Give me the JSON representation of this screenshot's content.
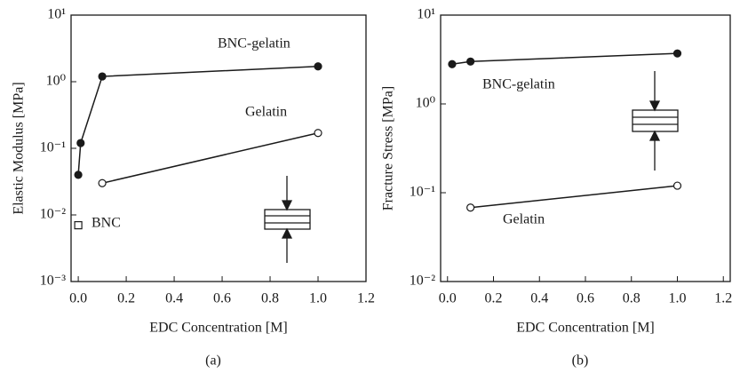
{
  "chart_data": [
    {
      "type": "line",
      "caption": "(a)",
      "xlabel": "EDC Concentration [M]",
      "ylabel": "Elastic Modulus [MPa]",
      "log_y": true,
      "xlim": [
        -0.03,
        1.2
      ],
      "ylim": [
        0.001,
        10
      ],
      "xticks": [
        {
          "value": 0,
          "label": "0.0"
        },
        0.2,
        0.4,
        0.6,
        0.8,
        {
          "value": 1,
          "label": "1.0"
        },
        1.2
      ],
      "yticks": [
        {
          "value": 0.001,
          "label": "10⁻³"
        },
        {
          "value": 0.01,
          "label": "10⁻²"
        },
        {
          "value": 0.1,
          "label": "10⁻¹"
        },
        {
          "value": 1,
          "label": "10⁰"
        },
        {
          "value": 10,
          "label": "10¹"
        }
      ],
      "series": [
        {
          "name": "BNC-gelatin",
          "color": "#1a1a1a",
          "marker": "circle",
          "marker_fill": "#1a1a1a",
          "x": [
            0,
            0.01,
            0.1,
            1.0
          ],
          "values": [
            0.04,
            0.12,
            1.2,
            1.7
          ]
        },
        {
          "name": "Gelatin",
          "color": "#1a1a1a",
          "marker": "circle",
          "marker_fill": "#ffffff",
          "x": [
            0.1,
            1.0
          ],
          "values": [
            0.03,
            0.17
          ]
        },
        {
          "name": "BNC",
          "color": "#1a1a1a",
          "marker": "square",
          "marker_fill": "#ffffff",
          "x": [
            0
          ],
          "values": [
            0.007
          ]
        }
      ]
    },
    {
      "type": "line",
      "caption": "(b)",
      "xlabel": "EDC Concentration [M]",
      "ylabel": "Fracture Stress [MPa]",
      "log_y": true,
      "xlim": [
        -0.03,
        1.23
      ],
      "ylim": [
        0.01,
        10
      ],
      "xticks": [
        {
          "value": 0,
          "label": "0.0"
        },
        0.2,
        0.4,
        0.6,
        0.8,
        {
          "value": 1,
          "label": "1.0"
        },
        1.2
      ],
      "yticks": [
        {
          "value": 0.01,
          "label": "10⁻²"
        },
        {
          "value": 0.1,
          "label": "10⁻¹"
        },
        {
          "value": 1,
          "label": "10⁰"
        },
        {
          "value": 10,
          "label": "10¹"
        }
      ],
      "series": [
        {
          "name": "BNC-gelatin",
          "color": "#1a1a1a",
          "marker": "circle",
          "marker_fill": "#1a1a1a",
          "x": [
            0.02,
            0.1,
            1.0
          ],
          "values": [
            2.8,
            3.0,
            3.7
          ]
        },
        {
          "name": "Gelatin",
          "color": "#1a1a1a",
          "marker": "circle",
          "marker_fill": "#ffffff",
          "x": [
            0.1,
            1.0
          ],
          "values": [
            0.068,
            0.12
          ]
        }
      ]
    }
  ]
}
